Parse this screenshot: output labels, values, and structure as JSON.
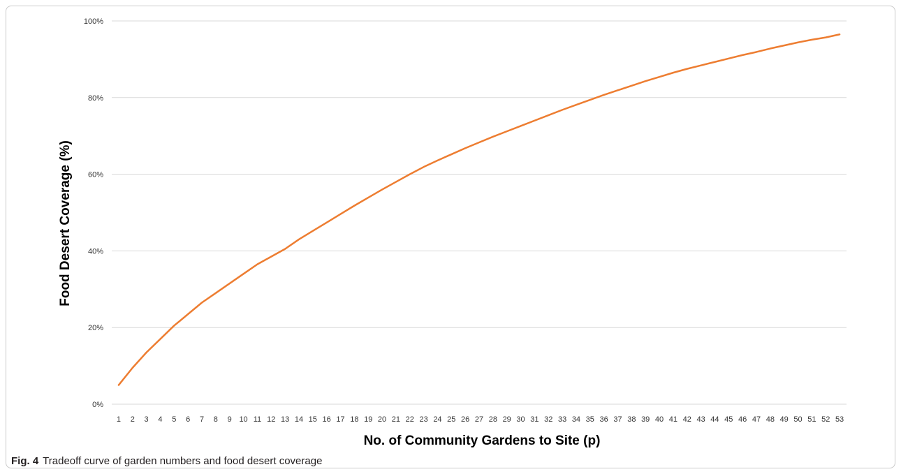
{
  "chart_data": {
    "type": "line",
    "title": "",
    "xlabel": "No. of Community Gardens to Site (p)",
    "ylabel": "Food Desert Coverage (%)",
    "ylim": [
      0,
      100
    ],
    "y_ticks": [
      "0%",
      "20%",
      "40%",
      "60%",
      "80%",
      "100%"
    ],
    "y_tick_values": [
      0,
      20,
      40,
      60,
      80,
      100
    ],
    "grid": "horizontal",
    "legend": "none",
    "line_color": "#ED7D31",
    "x": [
      1,
      2,
      3,
      4,
      5,
      6,
      7,
      8,
      9,
      10,
      11,
      12,
      13,
      14,
      15,
      16,
      17,
      18,
      19,
      20,
      21,
      22,
      23,
      24,
      25,
      26,
      27,
      28,
      29,
      30,
      31,
      32,
      33,
      34,
      35,
      36,
      37,
      38,
      39,
      40,
      41,
      42,
      43,
      44,
      45,
      46,
      47,
      48,
      49,
      50,
      51,
      52,
      53
    ],
    "series": [
      {
        "values": [
          5,
          9.5,
          13.5,
          17,
          20.5,
          23.5,
          26.5,
          29,
          31.5,
          34,
          36.5,
          38.5,
          40.5,
          43,
          45.2,
          47.4,
          49.6,
          51.8,
          53.9,
          56,
          58,
          60,
          61.9,
          63.6,
          65.2,
          66.8,
          68.3,
          69.8,
          71.2,
          72.6,
          74,
          75.4,
          76.8,
          78.1,
          79.4,
          80.7,
          81.9,
          83.1,
          84.3,
          85.4,
          86.5,
          87.5,
          88.4,
          89.3,
          90.2,
          91.1,
          91.9,
          92.8,
          93.6,
          94.4,
          95.1,
          95.7,
          96.5
        ]
      }
    ]
  },
  "caption": {
    "label": "Fig. 4",
    "text": "Tradeoff curve of garden numbers and food desert coverage"
  }
}
